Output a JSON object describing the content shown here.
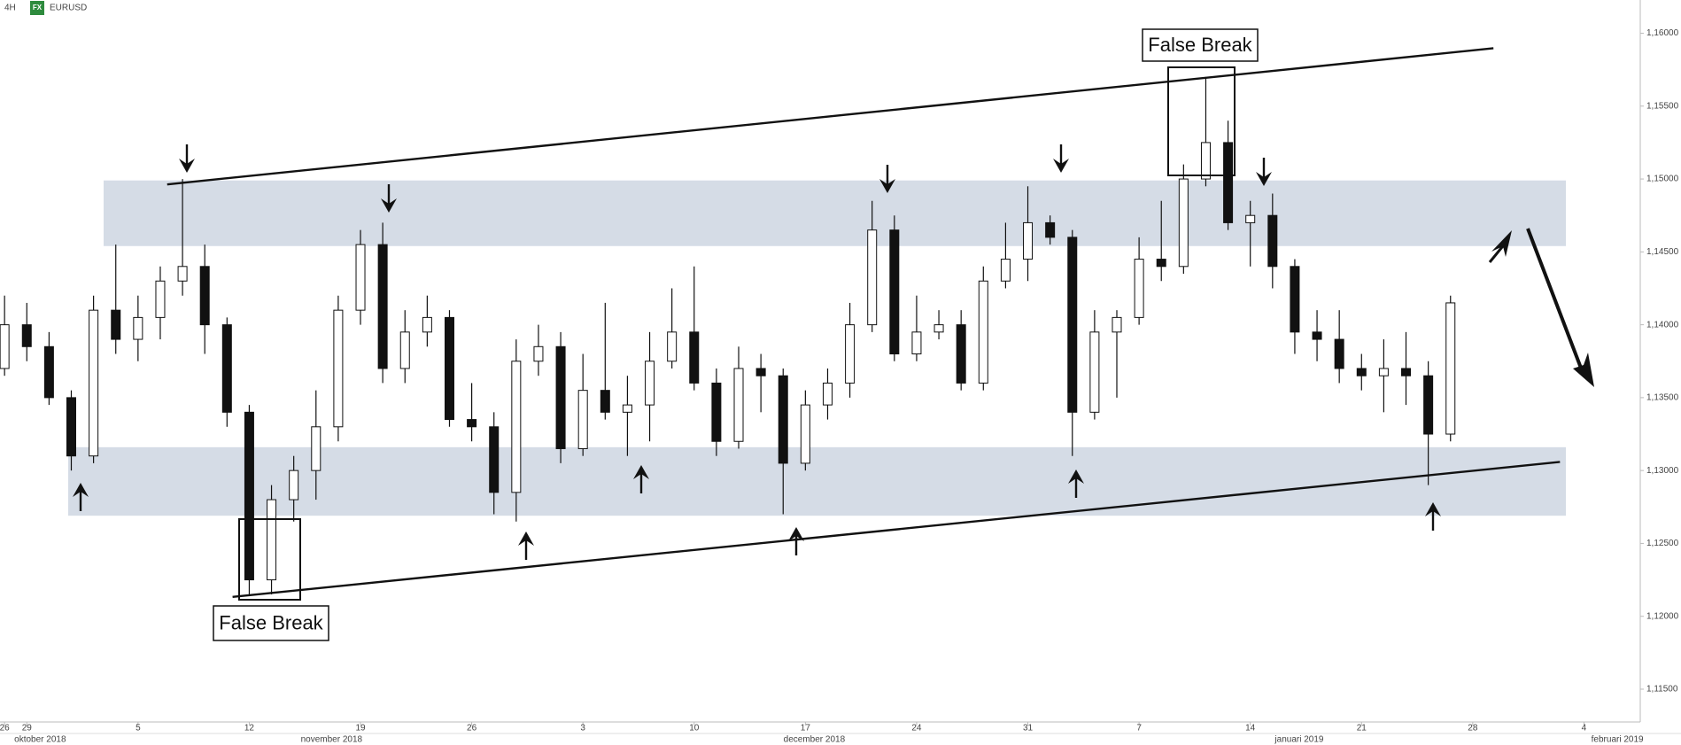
{
  "header": {
    "timeframe": "4H",
    "badge": "FX",
    "symbol": "EURUSD"
  },
  "chart_data": {
    "type": "candlestick",
    "x": [
      -1,
      0,
      1,
      2,
      3,
      4,
      5,
      6,
      7,
      8,
      9,
      10,
      11,
      12,
      13,
      14,
      15,
      16,
      17,
      18,
      19,
      20,
      21,
      22,
      23,
      24,
      25,
      26,
      27,
      28,
      29,
      30,
      31,
      32,
      33,
      34,
      35,
      36,
      37,
      38,
      39,
      40,
      41,
      42,
      43,
      44,
      45,
      46,
      47,
      48,
      49,
      50,
      51,
      52,
      53,
      54,
      55,
      56,
      57,
      58,
      59,
      60,
      61,
      62,
      63,
      64
    ],
    "open": [
      1.137,
      1.14,
      1.1385,
      1.135,
      1.131,
      1.141,
      1.139,
      1.1405,
      1.143,
      1.144,
      1.14,
      1.134,
      1.1225,
      1.128,
      1.13,
      1.133,
      1.141,
      1.1455,
      1.137,
      1.1395,
      1.1405,
      1.1335,
      1.133,
      1.1285,
      1.1375,
      1.1385,
      1.1315,
      1.1355,
      1.134,
      1.1345,
      1.1375,
      1.1395,
      1.136,
      1.132,
      1.137,
      1.1365,
      1.1305,
      1.1345,
      1.136,
      1.14,
      1.1465,
      1.138,
      1.1395,
      1.14,
      1.136,
      1.143,
      1.1445,
      1.147,
      1.146,
      1.134,
      1.1395,
      1.1405,
      1.1445,
      1.144,
      1.15,
      1.1525,
      1.147,
      1.1475,
      1.144,
      1.1395,
      1.139,
      1.137,
      1.1365,
      1.137,
      1.1365,
      1.1325
    ],
    "high": [
      1.142,
      1.1415,
      1.1395,
      1.1355,
      1.142,
      1.1455,
      1.142,
      1.144,
      1.15,
      1.1455,
      1.1405,
      1.1345,
      1.129,
      1.131,
      1.1355,
      1.142,
      1.1465,
      1.147,
      1.141,
      1.142,
      1.141,
      1.136,
      1.134,
      1.139,
      1.14,
      1.1395,
      1.138,
      1.1415,
      1.1365,
      1.1395,
      1.1425,
      1.144,
      1.137,
      1.1385,
      1.138,
      1.137,
      1.1355,
      1.137,
      1.1415,
      1.1485,
      1.1475,
      1.142,
      1.141,
      1.141,
      1.144,
      1.147,
      1.1495,
      1.1475,
      1.1465,
      1.141,
      1.141,
      1.146,
      1.1485,
      1.151,
      1.157,
      1.154,
      1.1485,
      1.149,
      1.1445,
      1.141,
      1.141,
      1.138,
      1.139,
      1.1395,
      1.1375,
      1.142
    ],
    "low": [
      1.1365,
      1.1375,
      1.1345,
      1.13,
      1.1305,
      1.138,
      1.1375,
      1.139,
      1.142,
      1.138,
      1.133,
      1.1215,
      1.1215,
      1.1265,
      1.128,
      1.132,
      1.14,
      1.136,
      1.136,
      1.1385,
      1.133,
      1.132,
      1.127,
      1.1265,
      1.1365,
      1.1305,
      1.131,
      1.1335,
      1.131,
      1.132,
      1.137,
      1.1355,
      1.131,
      1.1315,
      1.134,
      1.127,
      1.13,
      1.1335,
      1.135,
      1.1395,
      1.1375,
      1.1375,
      1.139,
      1.1355,
      1.1355,
      1.1425,
      1.143,
      1.1455,
      1.131,
      1.1335,
      1.135,
      1.14,
      1.143,
      1.1435,
      1.1495,
      1.1465,
      1.144,
      1.1425,
      1.138,
      1.1375,
      1.136,
      1.1355,
      1.134,
      1.1345,
      1.129,
      1.132
    ],
    "close": [
      1.14,
      1.1385,
      1.135,
      1.131,
      1.141,
      1.139,
      1.1405,
      1.143,
      1.144,
      1.14,
      1.134,
      1.1225,
      1.128,
      1.13,
      1.133,
      1.141,
      1.1455,
      1.137,
      1.1395,
      1.1405,
      1.1335,
      1.133,
      1.1285,
      1.1375,
      1.1385,
      1.1315,
      1.1355,
      1.134,
      1.1345,
      1.1375,
      1.1395,
      1.136,
      1.132,
      1.137,
      1.1365,
      1.1305,
      1.1345,
      1.136,
      1.14,
      1.1465,
      1.138,
      1.1395,
      1.14,
      1.136,
      1.143,
      1.1445,
      1.147,
      1.146,
      1.134,
      1.1395,
      1.1405,
      1.1445,
      1.144,
      1.15,
      1.1525,
      1.147,
      1.1475,
      1.144,
      1.1395,
      1.139,
      1.137,
      1.1365,
      1.137,
      1.1365,
      1.1325,
      1.1415
    ],
    "xlim": [
      -1.205,
      72.53
    ],
    "xticks": [
      {
        "value": -1,
        "label": "26"
      },
      {
        "value": 0,
        "label": "29"
      },
      {
        "value": 5,
        "label": "5"
      },
      {
        "value": 10,
        "label": "12"
      },
      {
        "value": 15,
        "label": "19"
      },
      {
        "value": 20,
        "label": "26"
      },
      {
        "value": 25,
        "label": "3"
      },
      {
        "value": 30,
        "label": "10"
      },
      {
        "value": 35,
        "label": "17"
      },
      {
        "value": 40,
        "label": "24"
      },
      {
        "value": 45,
        "label": "31"
      },
      {
        "value": 50,
        "label": "7"
      },
      {
        "value": 55,
        "label": "14"
      },
      {
        "value": 60,
        "label": "21"
      },
      {
        "value": 65,
        "label": "28"
      },
      {
        "value": 70,
        "label": "4"
      }
    ],
    "month_labels": [
      {
        "value": 0.6,
        "label": "oktober 2018"
      },
      {
        "value": 13.7,
        "label": "november 2018"
      },
      {
        "value": 35.4,
        "label": "december 2018"
      },
      {
        "value": 57.2,
        "label": "januari 2019"
      },
      {
        "value": 71.5,
        "label": "februari 2019"
      }
    ],
    "ylim": [
      1.11275,
      1.16228
    ],
    "yticks": [
      {
        "value": 1.115,
        "label": "1,11500"
      },
      {
        "value": 1.12,
        "label": "1,12000"
      },
      {
        "value": 1.125,
        "label": "1,12500"
      },
      {
        "value": 1.13,
        "label": "1,13000"
      },
      {
        "value": 1.135,
        "label": "1,13500"
      },
      {
        "value": 1.14,
        "label": "1,14000"
      },
      {
        "value": 1.145,
        "label": "1,14500"
      },
      {
        "value": 1.15,
        "label": "1,15000"
      },
      {
        "value": 1.155,
        "label": "1,15500"
      },
      {
        "value": 1.16,
        "label": "1,16000"
      }
    ],
    "zones": [
      [
        1.1454,
        1.1499
      ],
      [
        1.1269,
        1.1316
      ]
    ],
    "trendlines": [
      [
        6.31,
        1.14963,
        65.93,
        1.15897
      ],
      [
        9.25,
        1.12133,
        68.92,
        1.13059
      ]
    ],
    "annotations": [
      "False Break",
      "False Break"
    ]
  }
}
